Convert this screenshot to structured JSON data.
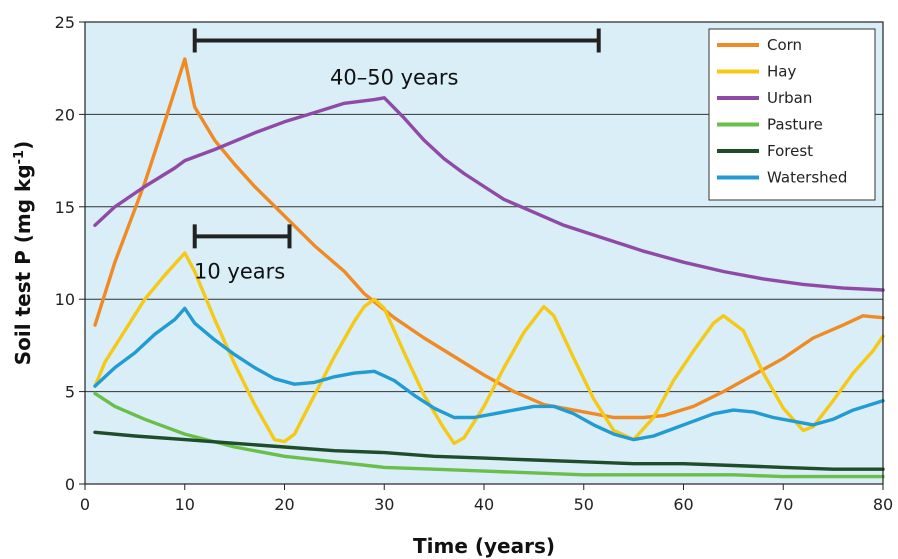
{
  "chart_data": {
    "type": "line",
    "xlabel": "Time (years)",
    "ylabel": "Soil test P (mg kg",
    "ylabel_unit_sup": "-1",
    "ylabel_close": ")",
    "xlim": [
      0,
      80
    ],
    "ylim": [
      0,
      25
    ],
    "xticks": [
      "0",
      "10",
      "20",
      "30",
      "40",
      "50",
      "60",
      "70",
      "80"
    ],
    "yticks": [
      "0",
      "5",
      "10",
      "15",
      "20",
      "25"
    ],
    "grid": "horizontal",
    "background_color": "#d9eef7",
    "legend_position": "top-right",
    "series": [
      {
        "name": "Corn",
        "color": "#f08a24",
        "points": [
          [
            1,
            8.6
          ],
          [
            3,
            12
          ],
          [
            6,
            16.3
          ],
          [
            8,
            19.6
          ],
          [
            10,
            23
          ],
          [
            11,
            20.4
          ],
          [
            13,
            18.6
          ],
          [
            15,
            17.3
          ],
          [
            17,
            16.1
          ],
          [
            20,
            14.5
          ],
          [
            23,
            12.9
          ],
          [
            26,
            11.5
          ],
          [
            28,
            10.3
          ],
          [
            31,
            9
          ],
          [
            34,
            7.9
          ],
          [
            37,
            6.9
          ],
          [
            40,
            5.9
          ],
          [
            43,
            5
          ],
          [
            46,
            4.3
          ],
          [
            50,
            3.9
          ],
          [
            53,
            3.6
          ],
          [
            56,
            3.6
          ],
          [
            58,
            3.7
          ],
          [
            61,
            4.2
          ],
          [
            64,
            5
          ],
          [
            67,
            5.9
          ],
          [
            70,
            6.8
          ],
          [
            73,
            7.9
          ],
          [
            76,
            8.6
          ],
          [
            78,
            9.1
          ],
          [
            80,
            9
          ]
        ]
      },
      {
        "name": "Hay",
        "color": "#f5c915",
        "points": [
          [
            1,
            5.3
          ],
          [
            2,
            6.6
          ],
          [
            4,
            8.3
          ],
          [
            6,
            10
          ],
          [
            8,
            11.3
          ],
          [
            10,
            12.5
          ],
          [
            11,
            11.5
          ],
          [
            13,
            8.9
          ],
          [
            15,
            6.5
          ],
          [
            17,
            4.3
          ],
          [
            19,
            2.4
          ],
          [
            20,
            2.3
          ],
          [
            21,
            2.7
          ],
          [
            23,
            4.8
          ],
          [
            25,
            6.9
          ],
          [
            27,
            8.8
          ],
          [
            28,
            9.6
          ],
          [
            29,
            10
          ],
          [
            30,
            9.5
          ],
          [
            32,
            7.1
          ],
          [
            34,
            4.8
          ],
          [
            36,
            3
          ],
          [
            37,
            2.2
          ],
          [
            38,
            2.5
          ],
          [
            40,
            4.2
          ],
          [
            42,
            6.3
          ],
          [
            44,
            8.2
          ],
          [
            46,
            9.6
          ],
          [
            47,
            9.1
          ],
          [
            49,
            6.8
          ],
          [
            51,
            4.6
          ],
          [
            53,
            2.9
          ],
          [
            55,
            2.4
          ],
          [
            57,
            3.6
          ],
          [
            59,
            5.6
          ],
          [
            61,
            7.2
          ],
          [
            63,
            8.7
          ],
          [
            64,
            9.1
          ],
          [
            66,
            8.3
          ],
          [
            68,
            6
          ],
          [
            70,
            4.1
          ],
          [
            72,
            2.9
          ],
          [
            73,
            3.1
          ],
          [
            75,
            4.5
          ],
          [
            77,
            6
          ],
          [
            79,
            7.2
          ],
          [
            80,
            8
          ]
        ]
      },
      {
        "name": "Urban",
        "color": "#8f4aa8",
        "points": [
          [
            1,
            14
          ],
          [
            3,
            15
          ],
          [
            6,
            16.1
          ],
          [
            9,
            17.1
          ],
          [
            10,
            17.5
          ],
          [
            13,
            18.1
          ],
          [
            17,
            19
          ],
          [
            20,
            19.6
          ],
          [
            23,
            20.1
          ],
          [
            26,
            20.6
          ],
          [
            29,
            20.8
          ],
          [
            30,
            20.9
          ],
          [
            32,
            19.8
          ],
          [
            34,
            18.6
          ],
          [
            36,
            17.6
          ],
          [
            38,
            16.8
          ],
          [
            40,
            16.1
          ],
          [
            42,
            15.4
          ],
          [
            45,
            14.7
          ],
          [
            48,
            14
          ],
          [
            52,
            13.3
          ],
          [
            56,
            12.6
          ],
          [
            60,
            12
          ],
          [
            64,
            11.5
          ],
          [
            68,
            11.1
          ],
          [
            72,
            10.8
          ],
          [
            76,
            10.6
          ],
          [
            80,
            10.5
          ]
        ]
      },
      {
        "name": "Pasture",
        "color": "#6abf4b",
        "points": [
          [
            1,
            4.9
          ],
          [
            3,
            4.2
          ],
          [
            6,
            3.5
          ],
          [
            10,
            2.7
          ],
          [
            15,
            2
          ],
          [
            20,
            1.5
          ],
          [
            25,
            1.2
          ],
          [
            30,
            0.9
          ],
          [
            35,
            0.8
          ],
          [
            40,
            0.7
          ],
          [
            45,
            0.6
          ],
          [
            50,
            0.5
          ],
          [
            55,
            0.5
          ],
          [
            60,
            0.5
          ],
          [
            65,
            0.5
          ],
          [
            70,
            0.4
          ],
          [
            80,
            0.4
          ]
        ]
      },
      {
        "name": "Forest",
        "color": "#1f4d2b",
        "points": [
          [
            1,
            2.8
          ],
          [
            5,
            2.6
          ],
          [
            10,
            2.4
          ],
          [
            15,
            2.2
          ],
          [
            20,
            2
          ],
          [
            25,
            1.8
          ],
          [
            30,
            1.7
          ],
          [
            35,
            1.5
          ],
          [
            40,
            1.4
          ],
          [
            45,
            1.3
          ],
          [
            50,
            1.2
          ],
          [
            55,
            1.1
          ],
          [
            60,
            1.1
          ],
          [
            65,
            1
          ],
          [
            70,
            0.9
          ],
          [
            75,
            0.8
          ],
          [
            80,
            0.8
          ]
        ]
      },
      {
        "name": "Watershed",
        "color": "#219bd2",
        "points": [
          [
            1,
            5.3
          ],
          [
            3,
            6.3
          ],
          [
            5,
            7.1
          ],
          [
            7,
            8.1
          ],
          [
            9,
            8.9
          ],
          [
            10,
            9.5
          ],
          [
            11,
            8.7
          ],
          [
            13,
            7.8
          ],
          [
            15,
            7
          ],
          [
            17,
            6.3
          ],
          [
            19,
            5.7
          ],
          [
            21,
            5.4
          ],
          [
            23,
            5.5
          ],
          [
            25,
            5.8
          ],
          [
            27,
            6
          ],
          [
            29,
            6.1
          ],
          [
            31,
            5.6
          ],
          [
            33,
            4.8
          ],
          [
            35,
            4.1
          ],
          [
            37,
            3.6
          ],
          [
            39,
            3.6
          ],
          [
            41,
            3.8
          ],
          [
            43,
            4
          ],
          [
            45,
            4.2
          ],
          [
            47,
            4.2
          ],
          [
            49,
            3.8
          ],
          [
            51,
            3.2
          ],
          [
            53,
            2.7
          ],
          [
            55,
            2.4
          ],
          [
            57,
            2.6
          ],
          [
            59,
            3
          ],
          [
            61,
            3.4
          ],
          [
            63,
            3.8
          ],
          [
            65,
            4
          ],
          [
            67,
            3.9
          ],
          [
            69,
            3.6
          ],
          [
            71,
            3.4
          ],
          [
            73,
            3.2
          ],
          [
            75,
            3.5
          ],
          [
            77,
            4
          ],
          [
            80,
            4.5
          ]
        ]
      }
    ],
    "annotations": [
      {
        "label": "40–50 years",
        "x_start": 11,
        "x_end": 51.5,
        "y": 24,
        "label_x": 31,
        "label_y": 22
      },
      {
        "label": "10 years",
        "x_start": 11,
        "x_end": 20.5,
        "y": 13.4,
        "label_x": 15.5,
        "label_y": 11.5
      }
    ]
  }
}
